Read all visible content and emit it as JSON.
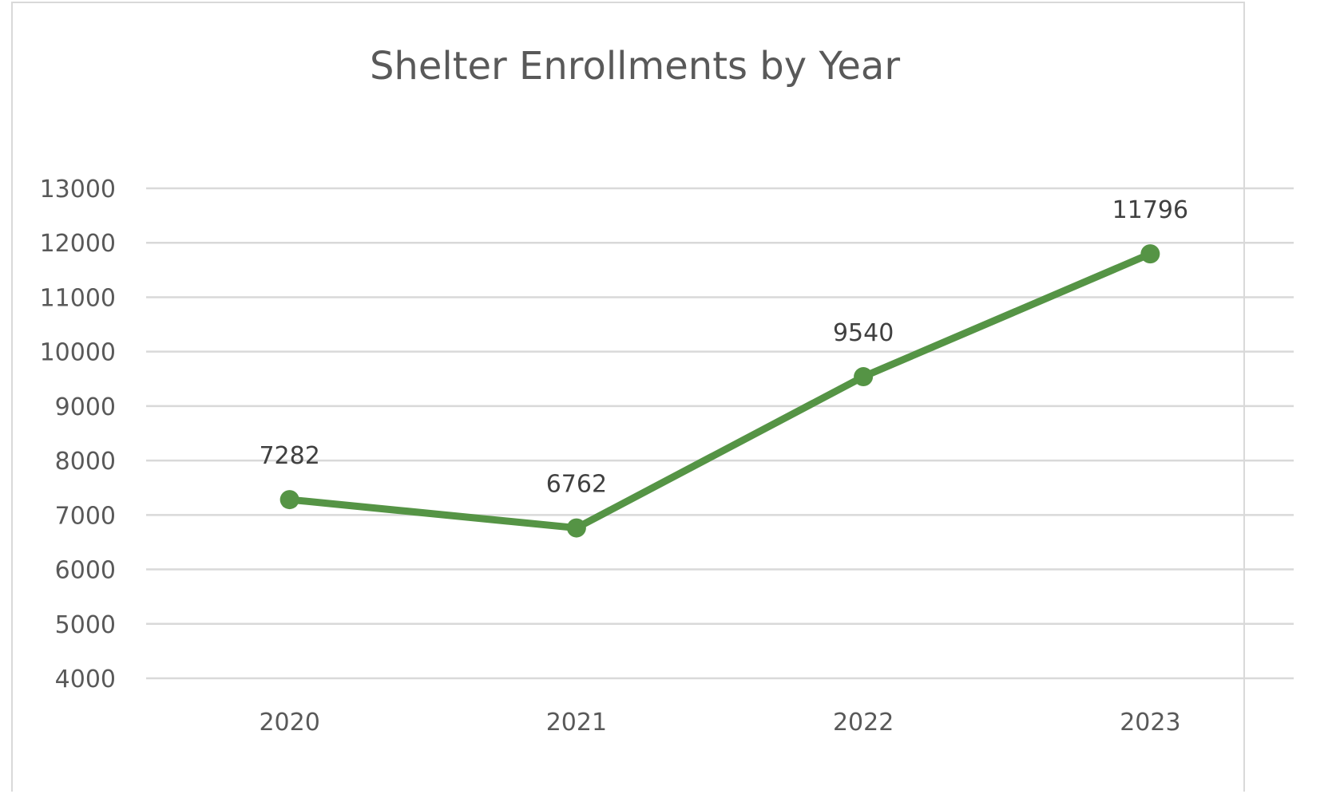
{
  "chart_data": {
    "type": "line",
    "title": "Shelter Enrollments by Year",
    "xlabel": "",
    "ylabel": "",
    "categories": [
      "2020",
      "2021",
      "2022",
      "2023"
    ],
    "series": [
      {
        "values": [
          7282,
          6762,
          9540,
          11796
        ],
        "color": "#559445"
      }
    ],
    "ylim": [
      4000,
      13000
    ],
    "yticks": [
      "4000",
      "5000",
      "6000",
      "7000",
      "8000",
      "9000",
      "10000",
      "11000",
      "12000",
      "13000"
    ],
    "data_labels": [
      "7282",
      "6762",
      "9540",
      "11796"
    ],
    "grid": true,
    "legend": "none",
    "colors": {
      "gridline": "#d9d9d9",
      "text": "#595959",
      "border": "#d9d9d9"
    }
  }
}
